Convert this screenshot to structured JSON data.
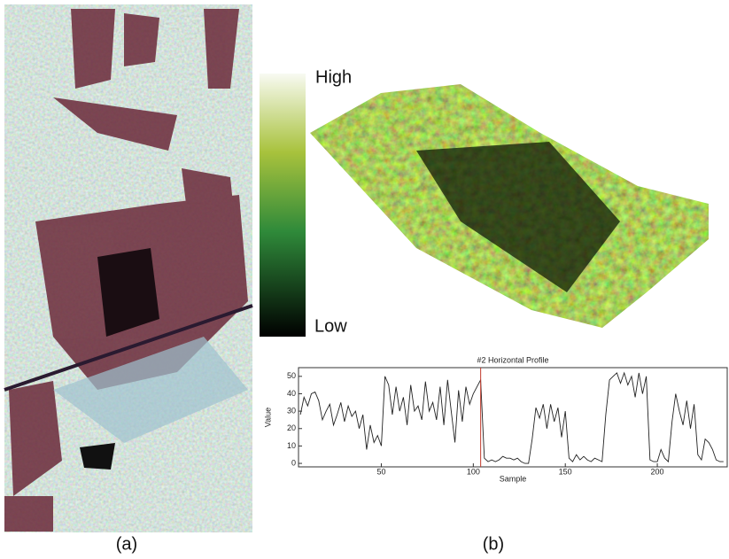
{
  "labels": {
    "a": "(a)",
    "b": "(b)"
  },
  "colorbar": {
    "high": "High",
    "low": "Low"
  },
  "chart_data": {
    "type": "line",
    "title": "#2 Horizontal Profile",
    "x_label": "Sample",
    "y_label": "Value",
    "x": [
      6,
      8,
      10,
      12,
      14,
      16,
      18,
      20,
      22,
      24,
      26,
      28,
      30,
      32,
      34,
      36,
      38,
      40,
      42,
      44,
      46,
      48,
      50,
      52,
      54,
      56,
      58,
      60,
      62,
      64,
      66,
      68,
      70,
      72,
      74,
      76,
      78,
      80,
      82,
      84,
      86,
      88,
      90,
      92,
      94,
      96,
      98,
      100,
      102,
      104,
      106,
      108,
      110,
      112,
      114,
      116,
      118,
      120,
      122,
      124,
      126,
      128,
      130,
      132,
      134,
      136,
      138,
      140,
      142,
      144,
      146,
      148,
      150,
      152,
      154,
      156,
      158,
      160,
      162,
      164,
      166,
      168,
      170,
      172,
      174,
      176,
      178,
      180,
      182,
      184,
      186,
      188,
      190,
      192,
      194,
      196,
      198,
      200,
      202,
      204,
      206,
      208,
      210,
      212,
      214,
      216,
      218,
      220,
      222,
      224,
      226,
      228,
      230,
      232,
      234,
      236
    ],
    "series": [
      {
        "color": "#222222",
        "values": [
          28,
          38,
          33,
          40,
          41,
          36,
          25,
          30,
          34,
          22,
          28,
          35,
          24,
          33,
          27,
          30,
          20,
          28,
          8,
          22,
          12,
          16,
          10,
          50,
          45,
          28,
          44,
          30,
          38,
          22,
          45,
          30,
          33,
          25,
          47,
          30,
          35,
          25,
          44,
          22,
          48,
          30,
          12,
          42,
          24,
          44,
          34,
          40,
          44,
          48,
          3,
          1,
          2,
          1,
          2,
          4,
          3,
          3,
          2,
          3,
          1,
          0,
          0,
          14,
          32,
          26,
          34,
          20,
          34,
          24,
          32,
          15,
          30,
          3,
          1,
          5,
          2,
          4,
          2,
          1,
          3,
          2,
          1,
          28,
          48,
          50,
          52,
          46,
          52,
          45,
          50,
          38,
          52,
          40,
          50,
          2,
          1,
          1,
          8,
          3,
          1,
          24,
          40,
          30,
          22,
          36,
          20,
          34,
          5,
          2,
          14,
          12,
          8,
          2,
          1,
          1
        ]
      }
    ],
    "xlim": [
      5,
      238
    ],
    "ylim": [
      -2,
      55
    ],
    "xticks": [
      50,
      100,
      150,
      200
    ],
    "yticks": [
      0,
      10,
      20,
      30,
      40,
      50
    ],
    "marker_x": 104,
    "marker_color": "#c0392b"
  }
}
